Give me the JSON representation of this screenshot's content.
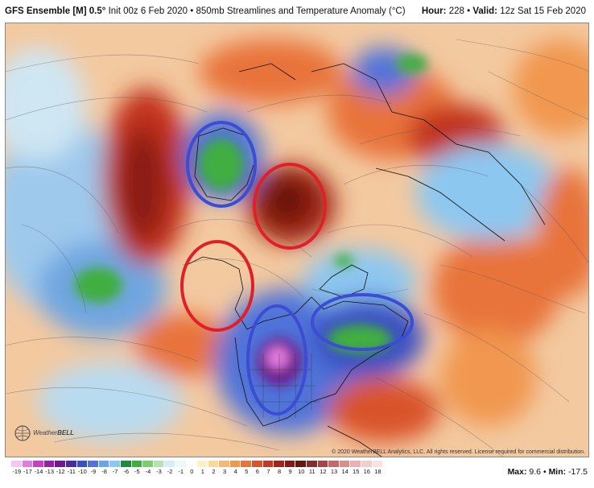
{
  "header": {
    "model": "GFS Ensemble [M] 0.5°",
    "init": "Init 00z 6 Feb 2020",
    "sep": "•",
    "field": "850mb Streamlines and Temperature Anomaly (°C)",
    "hour_label": "Hour:",
    "hour": "228",
    "valid_label": "Valid:",
    "valid": "12z Sat 15 Feb 2020"
  },
  "map": {
    "copyright": "© 2020 WeatherBELL Analytics, LLC. All rights reserved. License required for commercial distribution.",
    "logo_text_regular": "Weather",
    "logo_text_bold": "BELL",
    "annotations": [
      {
        "shape": "ellipse",
        "color": "#3b4ed1",
        "region": "Siberia / Chukotka"
      },
      {
        "shape": "ellipse",
        "color": "#e02028",
        "region": "Arctic Ocean / Beaufort"
      },
      {
        "shape": "ellipse",
        "color": "#e02028",
        "region": "Alaska"
      },
      {
        "shape": "ellipse",
        "color": "#3b4ed1",
        "region": "Western United States"
      },
      {
        "shape": "ellipse",
        "color": "#3b4ed1",
        "region": "Eastern Canada"
      }
    ]
  },
  "legend": {
    "ticks": [
      "-19",
      "-17",
      "-14",
      "-13",
      "-12",
      "-11",
      "-10",
      "-9",
      "-8",
      "-7",
      "-6",
      "-5",
      "-4",
      "-3",
      "-2",
      "-1",
      "0",
      "1",
      "2",
      "3",
      "4",
      "5",
      "6",
      "7",
      "8",
      "9",
      "10",
      "11",
      "12",
      "13",
      "14",
      "15",
      "16",
      "18"
    ],
    "colors": [
      "#f5c6ef",
      "#e27de0",
      "#c840c8",
      "#9a1fa8",
      "#6e1a8c",
      "#4a2a9e",
      "#3b4fc4",
      "#4f73d9",
      "#67a4e8",
      "#8cc7f0",
      "#1f8a3a",
      "#3fae3f",
      "#7bd06a",
      "#b3e3b0",
      "#d6eef6",
      "#eef7fb",
      "#ffffff",
      "#fdf0c8",
      "#fbd99a",
      "#f6b870",
      "#f1974f",
      "#e8733b",
      "#d9532c",
      "#c13a21",
      "#a22618",
      "#831b14",
      "#6a1410",
      "#8a2a2a",
      "#a64545",
      "#c26a6a",
      "#d98d8d",
      "#ebb0b0",
      "#f5cccc",
      "#fbe2e2"
    ],
    "max_label": "Max:",
    "max": "9.6",
    "min_label": "Min:",
    "min": "-17.5"
  }
}
